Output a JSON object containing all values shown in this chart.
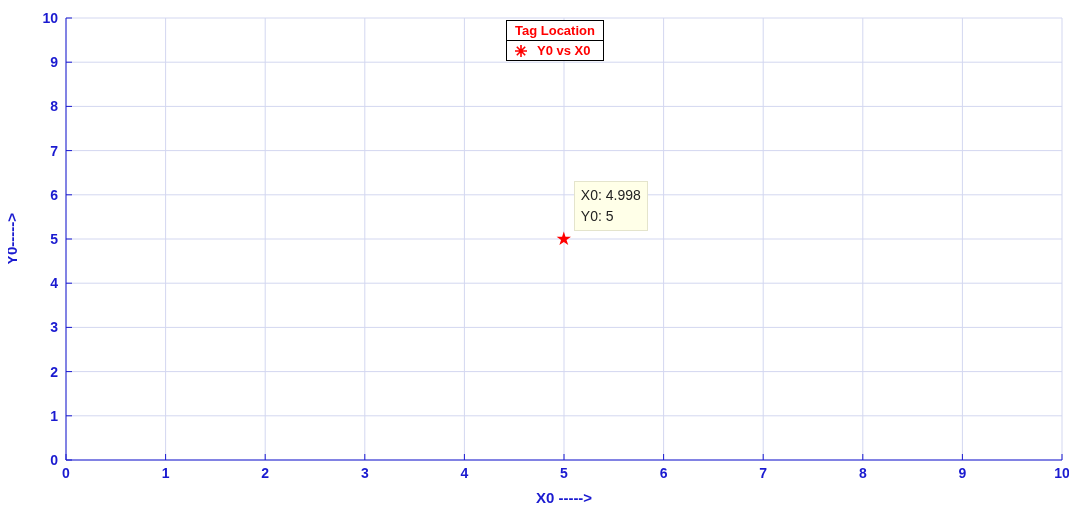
{
  "chart_data": {
    "type": "scatter",
    "x": [
      4.998
    ],
    "series": [
      {
        "name": "Y0 vs X0",
        "color": "#ff0000",
        "values": [
          5
        ]
      }
    ],
    "legend_title": "Tag Location",
    "legend": "top",
    "marker": "star",
    "xlabel": "X0 ----->",
    "ylabel": "Y0----->",
    "xlim": [
      0,
      10
    ],
    "xticks": [
      0,
      1,
      2,
      3,
      4,
      5,
      6,
      7,
      8,
      9,
      10
    ],
    "ylim": [
      0,
      10
    ],
    "yticks": [
      0,
      1,
      2,
      3,
      4,
      5,
      6,
      7,
      8,
      9,
      10
    ],
    "grid": true,
    "annotations": [
      {
        "text": "X0: 4.998\nY0: 5",
        "x": 4.998,
        "y": 5
      }
    ]
  }
}
